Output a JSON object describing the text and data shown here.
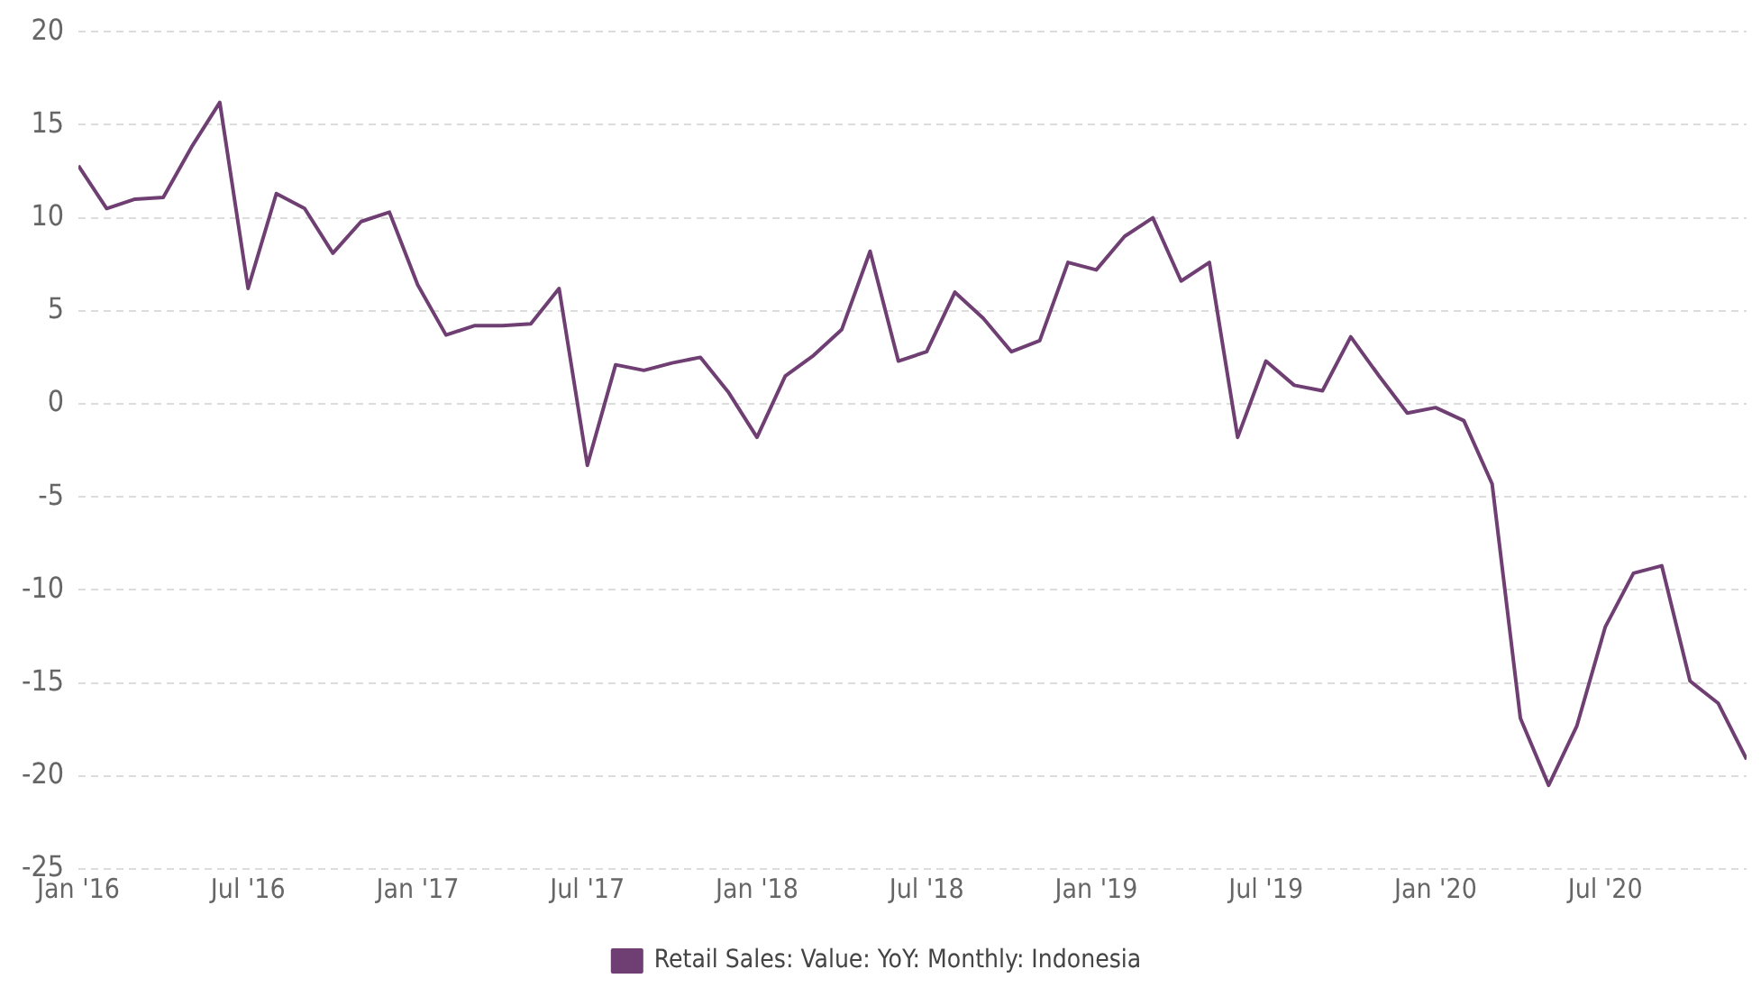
{
  "chart_data": {
    "type": "line",
    "x": [
      "2016-01",
      "2016-02",
      "2016-03",
      "2016-04",
      "2016-05",
      "2016-06",
      "2016-07",
      "2016-08",
      "2016-09",
      "2016-10",
      "2016-11",
      "2016-12",
      "2017-01",
      "2017-02",
      "2017-03",
      "2017-04",
      "2017-05",
      "2017-06",
      "2017-07",
      "2017-08",
      "2017-09",
      "2017-10",
      "2017-11",
      "2017-12",
      "2018-01",
      "2018-02",
      "2018-03",
      "2018-04",
      "2018-05",
      "2018-06",
      "2018-07",
      "2018-08",
      "2018-09",
      "2018-10",
      "2018-11",
      "2018-12",
      "2019-01",
      "2019-02",
      "2019-03",
      "2019-04",
      "2019-05",
      "2019-06",
      "2019-07",
      "2019-08",
      "2019-09",
      "2019-10",
      "2019-11",
      "2019-12",
      "2020-01",
      "2020-02",
      "2020-03",
      "2020-04",
      "2020-05",
      "2020-06",
      "2020-07",
      "2020-08",
      "2020-09",
      "2020-10",
      "2020-11",
      "2020-12"
    ],
    "series": [
      {
        "name": "Retail Sales: Value: YoY: Monthly: Indonesia",
        "color": "#6f3f73",
        "values": [
          12.8,
          10.5,
          11.0,
          11.1,
          13.8,
          16.2,
          6.2,
          11.3,
          10.5,
          8.1,
          9.8,
          10.3,
          6.4,
          3.7,
          4.2,
          4.2,
          4.3,
          6.2,
          -3.3,
          2.1,
          1.8,
          2.2,
          2.5,
          0.6,
          -1.8,
          1.5,
          2.6,
          4.0,
          8.2,
          2.3,
          2.8,
          6.0,
          4.6,
          2.8,
          3.4,
          7.6,
          7.2,
          9.0,
          10.0,
          6.6,
          7.6,
          -1.8,
          2.3,
          1.0,
          0.7,
          3.6,
          1.5,
          -0.5,
          -0.2,
          -0.9,
          -4.3,
          -16.9,
          -20.5,
          -17.3,
          -12.0,
          -9.1,
          -8.7,
          -14.9,
          -16.1,
          -19.1
        ]
      }
    ],
    "xlim": [
      "2016-01",
      "2020-12"
    ],
    "xticks": [
      {
        "value": "2016-01",
        "label": "Jan '16"
      },
      {
        "value": "2016-07",
        "label": "Jul '16"
      },
      {
        "value": "2017-01",
        "label": "Jan '17"
      },
      {
        "value": "2017-07",
        "label": "Jul '17"
      },
      {
        "value": "2018-01",
        "label": "Jan '18"
      },
      {
        "value": "2018-07",
        "label": "Jul '18"
      },
      {
        "value": "2019-01",
        "label": "Jan '19"
      },
      {
        "value": "2019-07",
        "label": "Jul '19"
      },
      {
        "value": "2020-01",
        "label": "Jan '20"
      },
      {
        "value": "2020-07",
        "label": "Jul '20"
      }
    ],
    "ylim": [
      -25,
      20
    ],
    "yticks": [
      -25,
      -20,
      -15,
      -10,
      -5,
      0,
      5,
      10,
      15,
      20
    ],
    "grid": "y",
    "legend": "bottom",
    "marker": "none",
    "line_style": "solid"
  }
}
